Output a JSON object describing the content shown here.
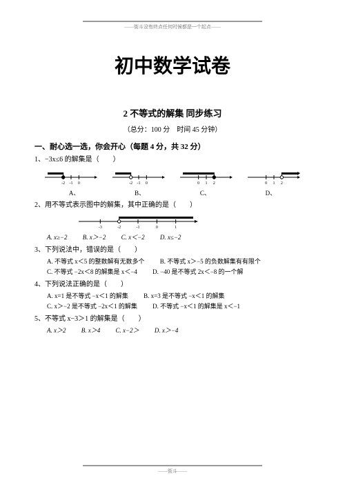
{
  "header_note": "——街斗没有终点任何时候都是一个起点——",
  "footer_note": "——街斗——",
  "main_title": "初中数学试卷",
  "sub_title": "2 不等式的解集 同步练习",
  "meta": "（总分：100 分　时间 45 分钟）",
  "section1": "一、耐心选一选，你会开心（每题 4 分，共 32 分）",
  "q1": {
    "stem": "1、−3x≤6 的解集是（　　）",
    "labels": [
      "A、",
      "B、",
      "C、",
      "D、"
    ],
    "lines": [
      {
        "ticks": [
          -2,
          -1,
          0
        ],
        "fillStart": -2,
        "fillEnd": -4,
        "closed": true,
        "arrowRight": false
      },
      {
        "ticks": [
          -2,
          -1,
          0
        ],
        "fillStart": -2,
        "fillEnd": -4,
        "closed": false,
        "arrowRight": false
      },
      {
        "ticks": [
          0,
          1,
          2
        ],
        "fillStart": 2,
        "fillEnd": -2,
        "closed": true,
        "arrowRight": false
      },
      {
        "ticks": [
          0,
          1,
          2
        ],
        "fillStart": 2,
        "fillEnd": 4,
        "closed": false,
        "arrowRight": true
      }
    ]
  },
  "q2": {
    "stem": "2、用不等式表示图中的解集，其中正确的是（　　）",
    "line": {
      "ticks": [
        -3,
        -2,
        -1,
        0,
        1
      ]
    },
    "opts": [
      "A. x≥−2",
      "B. x＞−2",
      "C. x＜−2",
      "D. x≤−2"
    ]
  },
  "q3": {
    "stem": "3、下列说法中，错误的是（　　）",
    "opts": [
      "A. 不等式 x＜5 的整数解有无数多个",
      "B. 不等式 x＞−5 的负数解集有有限个",
      "C. 不等式 −2x＜8 的解集是 x＜−4",
      "D. −40 是不等式 2x＜−8 的一个解"
    ]
  },
  "q4": {
    "stem": "4、下列说法正确的是（　　）",
    "opts": [
      "A. x=1 是不等式 −x＜1 的解集",
      "B. x=3 是不等式 −x＜1 的解集",
      "C. x＞−2 是不等式 −2x＜1 的解集",
      "D. 不等式 −x＜1 的解集是 x＜−1"
    ]
  },
  "q5": {
    "stem": "5、不等式 x−3＞1 的解集是（　　）",
    "opts": [
      "A. x＞2",
      "B. x＞4",
      "C. x−2＞",
      "D. x＞−4"
    ]
  },
  "svg": {
    "w": 80,
    "h": 28,
    "axisY": 14,
    "tickH": 3,
    "labelY": 24,
    "labelSize": 6,
    "barY": 10,
    "barH": 3,
    "circleR": 2.2,
    "stroke": "#000"
  }
}
